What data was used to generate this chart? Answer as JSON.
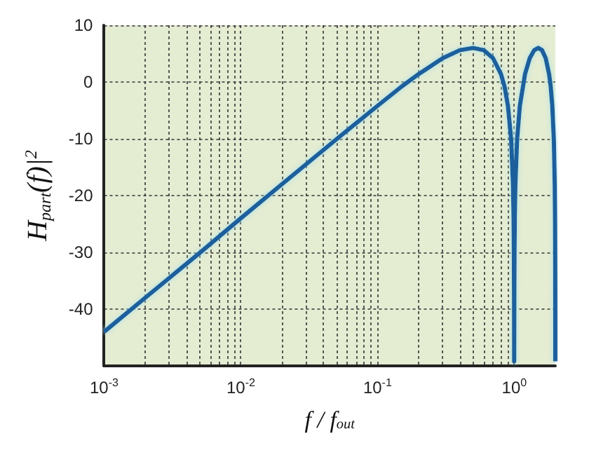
{
  "chart_data": {
    "type": "line",
    "xlabel": "f / f$_{out}$",
    "ylabel": "H$_{part}$(f)|$^{2}$",
    "x": [
      0.001,
      0.002,
      0.003,
      0.005,
      0.01,
      0.02,
      0.05,
      0.1,
      0.15,
      0.2,
      0.3,
      0.4,
      0.5,
      0.6,
      0.7,
      0.8,
      0.85,
      0.9,
      0.95,
      0.98,
      0.99,
      0.995,
      0.998,
      0.999,
      0.99945,
      1.00055,
      1.001,
      1.002,
      1.005,
      1.01,
      1.02,
      1.05,
      1.1,
      1.2,
      1.3,
      1.4,
      1.5,
      1.6,
      1.7,
      1.8,
      1.85,
      1.9,
      1.95,
      1.98,
      1.99,
      1.995,
      1.998,
      1.999,
      1.99945
    ],
    "series": [
      {
        "color": "#1b5e9c",
        "values": [
          -44.0,
          -38.0,
          -34.5,
          -30.1,
          -24.0,
          -18.0,
          -10.1,
          -4.2,
          -0.8,
          1.4,
          4.2,
          5.6,
          6.0,
          5.6,
          4.2,
          1.4,
          -0.8,
          -4.2,
          -10.1,
          -18.0,
          -24.0,
          -30.1,
          -38.0,
          -44.0,
          -49.2,
          -49.2,
          -44.0,
          -38.0,
          -30.1,
          -24.0,
          -18.0,
          -10.1,
          -4.2,
          1.4,
          4.2,
          5.6,
          6.0,
          5.6,
          4.2,
          1.4,
          -0.8,
          -4.2,
          -10.1,
          -18.0,
          -24.0,
          -30.1,
          -38.0,
          -44.0,
          -49.2
        ]
      }
    ],
    "log": "x",
    "xlim": [
      0.001,
      2
    ],
    "xticks": [
      {
        "value": 0.001,
        "label": "10$^{-3}$"
      },
      {
        "value": 0.002,
        "label": null
      },
      {
        "value": 0.003,
        "label": null
      },
      {
        "value": 0.004,
        "label": null
      },
      {
        "value": 0.005,
        "label": null
      },
      {
        "value": 0.006,
        "label": null
      },
      {
        "value": 0.007,
        "label": null
      },
      {
        "value": 0.008,
        "label": null
      },
      {
        "value": 0.009,
        "label": null
      },
      {
        "value": 0.01,
        "label": "10$^{-2}$"
      },
      {
        "value": 0.02,
        "label": null
      },
      {
        "value": 0.03,
        "label": null
      },
      {
        "value": 0.04,
        "label": null
      },
      {
        "value": 0.05,
        "label": null
      },
      {
        "value": 0.06,
        "label": null
      },
      {
        "value": 0.07,
        "label": null
      },
      {
        "value": 0.08,
        "label": null
      },
      {
        "value": 0.09,
        "label": null
      },
      {
        "value": 0.1,
        "label": "10$^{-1}$"
      },
      {
        "value": 0.2,
        "label": null
      },
      {
        "value": 0.3,
        "label": null
      },
      {
        "value": 0.4,
        "label": null
      },
      {
        "value": 0.5,
        "label": null
      },
      {
        "value": 0.6,
        "label": null
      },
      {
        "value": 0.7,
        "label": null
      },
      {
        "value": 0.8,
        "label": null
      },
      {
        "value": 0.9,
        "label": null
      },
      {
        "value": 1,
        "label": "10$^{0}$"
      }
    ],
    "ylim": [
      -50,
      10
    ],
    "yticks": [
      -40,
      -30,
      -20,
      -10,
      0,
      10
    ],
    "grid": true,
    "marker": "none",
    "line_style": "solid"
  }
}
